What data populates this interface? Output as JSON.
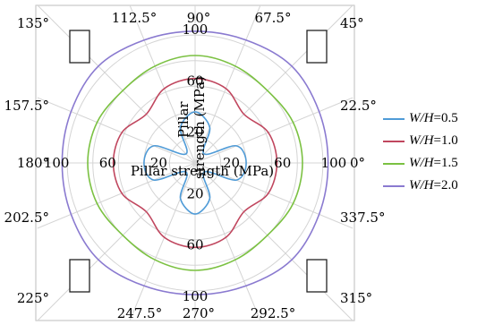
{
  "chart_data": {
    "type": "polar-line",
    "title": "",
    "radial_axis_label": "Pillar strength (MPa)",
    "radial_ticks": [
      20,
      60,
      100
    ],
    "radial_range": [
      0,
      112
    ],
    "angle_labels": [
      {
        "deg": 0,
        "label": "0°"
      },
      {
        "deg": 22.5,
        "label": "22.5°"
      },
      {
        "deg": 45,
        "label": "45°"
      },
      {
        "deg": 67.5,
        "label": "67.5°"
      },
      {
        "deg": 90,
        "label": "90°"
      },
      {
        "deg": 112.5,
        "label": "112.5°"
      },
      {
        "deg": 135,
        "label": "135°"
      },
      {
        "deg": 157.5,
        "label": "157.5°"
      },
      {
        "deg": 180,
        "label": "180°"
      },
      {
        "deg": 202.5,
        "label": "202.5°"
      },
      {
        "deg": 225,
        "label": "225°"
      },
      {
        "deg": 247.5,
        "label": "247.5°"
      },
      {
        "deg": 270,
        "label": "270°"
      },
      {
        "deg": 292.5,
        "label": "292.5°"
      },
      {
        "deg": 315,
        "label": "315°"
      },
      {
        "deg": 337.5,
        "label": "337.5°"
      }
    ],
    "grid": true,
    "legend_position": "right",
    "angles_deg": [
      0,
      22.5,
      45,
      67.5,
      90,
      112.5,
      135,
      157.5,
      180,
      202.5,
      225,
      247.5,
      270,
      292.5,
      315,
      337.5
    ],
    "series": [
      {
        "name": "W/H=0.5",
        "label_var": "W/H",
        "label_value": "=0.5",
        "color": "#4f9bd7",
        "values": [
          40,
          35,
          10,
          30,
          40,
          30,
          10,
          35,
          40,
          35,
          10,
          30,
          40,
          30,
          10,
          35
        ]
      },
      {
        "name": "W/H=1.0",
        "label_var": "W/H",
        "label_value": "=1.0",
        "color": "#c0465e",
        "values": [
          64,
          62,
          54,
          63,
          66,
          63,
          54,
          62,
          64,
          62,
          54,
          63,
          66,
          63,
          54,
          62
        ]
      },
      {
        "name": "W/H=1.5",
        "label_var": "W/H",
        "label_value": "=1.5",
        "color": "#7bc142",
        "values": [
          84,
          83,
          80,
          82,
          84,
          82,
          80,
          83,
          84,
          83,
          80,
          82,
          84,
          82,
          80,
          83
        ]
      },
      {
        "name": "W/H=2.0",
        "label_var": "W/H",
        "label_value": "=2.0",
        "color": "#8a7ad0",
        "values": [
          104,
          105,
          107,
          104,
          103,
          104,
          107,
          105,
          104,
          105,
          107,
          104,
          103,
          104,
          107,
          105
        ]
      }
    ]
  }
}
